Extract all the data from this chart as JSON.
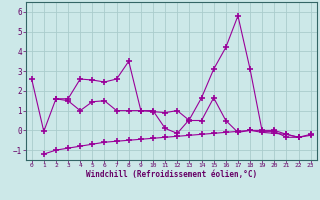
{
  "xlabel": "Windchill (Refroidissement éolien,°C)",
  "background_color": "#cce8e8",
  "line_color": "#990099",
  "grid_color": "#aacccc",
  "spine_color": "#336666",
  "tick_color": "#660066",
  "xlim": [
    -0.5,
    23.5
  ],
  "ylim": [
    -1.5,
    6.5
  ],
  "yticks": [
    -1,
    0,
    1,
    2,
    3,
    4,
    5,
    6
  ],
  "xticks": [
    0,
    1,
    2,
    3,
    4,
    5,
    6,
    7,
    8,
    9,
    10,
    11,
    12,
    13,
    14,
    15,
    16,
    17,
    18,
    19,
    20,
    21,
    22,
    23
  ],
  "line1_x": [
    0,
    1,
    2,
    3,
    4,
    5,
    6,
    7,
    8,
    9,
    10,
    11,
    12,
    13,
    14,
    15,
    16,
    17,
    18,
    19,
    20,
    21,
    22
  ],
  "line1_y": [
    2.6,
    -0.05,
    1.6,
    1.6,
    2.6,
    2.55,
    2.45,
    2.6,
    3.5,
    1.0,
    1.0,
    0.1,
    -0.15,
    0.55,
    1.65,
    3.1,
    4.2,
    5.8,
    3.1,
    -0.05,
    -0.05,
    -0.35,
    -0.35
  ],
  "line2_x": [
    2,
    3,
    4,
    5,
    6,
    7,
    8,
    9,
    10,
    11,
    12,
    13,
    14,
    15,
    16,
    17,
    18,
    19,
    20,
    21,
    22,
    23
  ],
  "line2_y": [
    1.6,
    1.5,
    1.0,
    1.45,
    1.5,
    1.0,
    1.0,
    1.0,
    0.95,
    0.9,
    1.0,
    0.5,
    0.5,
    1.65,
    0.5,
    -0.1,
    0.0,
    -0.1,
    -0.15,
    -0.2,
    -0.35,
    -0.2
  ],
  "line3_x": [
    1,
    2,
    3,
    4,
    5,
    6,
    7,
    8,
    9,
    10,
    11,
    12,
    13,
    14,
    15,
    16,
    17,
    18,
    19,
    20,
    21,
    22,
    23
  ],
  "line3_y": [
    -1.2,
    -1.0,
    -0.9,
    -0.8,
    -0.7,
    -0.6,
    -0.55,
    -0.5,
    -0.45,
    -0.4,
    -0.35,
    -0.3,
    -0.25,
    -0.2,
    -0.15,
    -0.1,
    -0.05,
    0.0,
    0.0,
    0.0,
    -0.2,
    -0.35,
    -0.25
  ]
}
